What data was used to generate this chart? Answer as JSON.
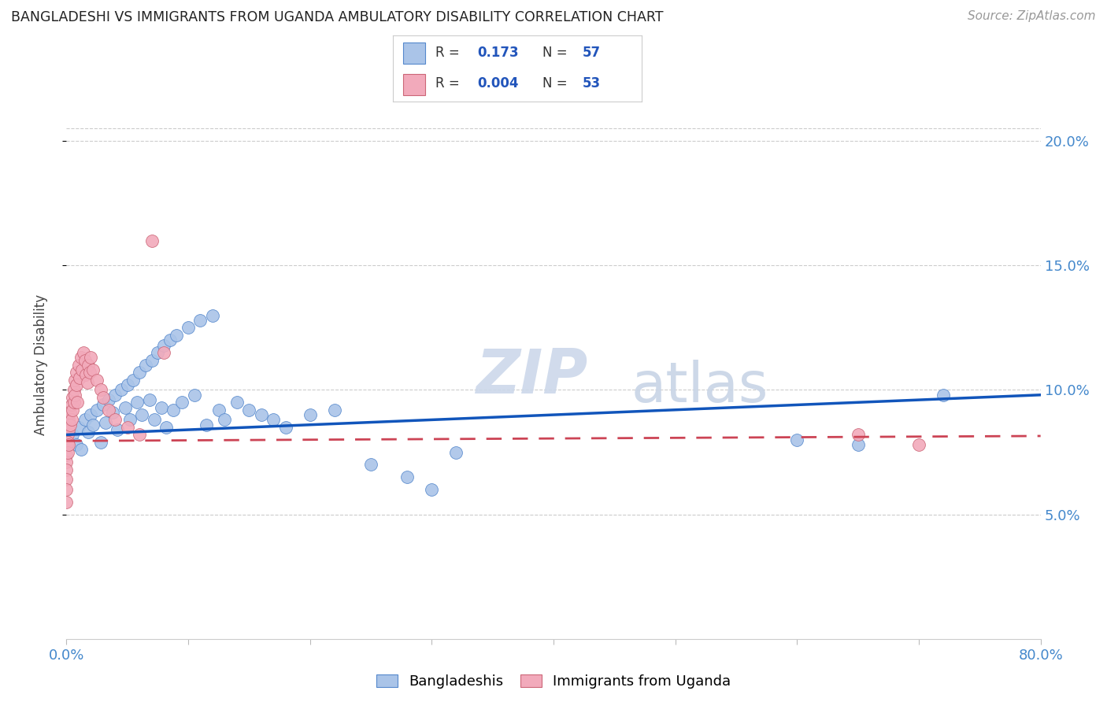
{
  "title": "BANGLADESHI VS IMMIGRANTS FROM UGANDA AMBULATORY DISABILITY CORRELATION CHART",
  "source": "Source: ZipAtlas.com",
  "ylabel": "Ambulatory Disability",
  "yticks": [
    0.05,
    0.1,
    0.15,
    0.2
  ],
  "ytick_labels": [
    "5.0%",
    "10.0%",
    "15.0%",
    "20.0%"
  ],
  "xlim": [
    0.0,
    0.8
  ],
  "ylim": [
    0.0,
    0.22
  ],
  "legend_blue_r": "0.173",
  "legend_blue_n": "57",
  "legend_pink_r": "0.004",
  "legend_pink_n": "53",
  "legend_label_blue": "Bangladeshis",
  "legend_label_pink": "Immigrants from Uganda",
  "blue_color": "#aac4e8",
  "pink_color": "#f2aabb",
  "blue_edge_color": "#5588cc",
  "pink_edge_color": "#cc6677",
  "blue_line_color": "#1155bb",
  "pink_line_color": "#cc4455",
  "watermark_zip": "ZIP",
  "watermark_atlas": "atlas",
  "blue_scatter_x": [
    0.005,
    0.008,
    0.01,
    0.012,
    0.015,
    0.018,
    0.02,
    0.022,
    0.025,
    0.028,
    0.03,
    0.032,
    0.035,
    0.038,
    0.04,
    0.042,
    0.045,
    0.048,
    0.05,
    0.052,
    0.055,
    0.058,
    0.06,
    0.062,
    0.065,
    0.068,
    0.07,
    0.072,
    0.075,
    0.078,
    0.08,
    0.082,
    0.085,
    0.088,
    0.09,
    0.095,
    0.1,
    0.105,
    0.11,
    0.115,
    0.12,
    0.125,
    0.13,
    0.14,
    0.15,
    0.16,
    0.17,
    0.18,
    0.2,
    0.22,
    0.25,
    0.28,
    0.3,
    0.32,
    0.6,
    0.65,
    0.72
  ],
  "blue_scatter_y": [
    0.082,
    0.078,
    0.085,
    0.076,
    0.088,
    0.083,
    0.09,
    0.086,
    0.092,
    0.079,
    0.094,
    0.087,
    0.096,
    0.091,
    0.098,
    0.084,
    0.1,
    0.093,
    0.102,
    0.088,
    0.104,
    0.095,
    0.107,
    0.09,
    0.11,
    0.096,
    0.112,
    0.088,
    0.115,
    0.093,
    0.118,
    0.085,
    0.12,
    0.092,
    0.122,
    0.095,
    0.125,
    0.098,
    0.128,
    0.086,
    0.13,
    0.092,
    0.088,
    0.095,
    0.092,
    0.09,
    0.088,
    0.085,
    0.09,
    0.092,
    0.07,
    0.065,
    0.06,
    0.075,
    0.08,
    0.078,
    0.098
  ],
  "pink_scatter_x": [
    0.0,
    0.0,
    0.0,
    0.0,
    0.0,
    0.0,
    0.0,
    0.0,
    0.0,
    0.0,
    0.001,
    0.001,
    0.001,
    0.001,
    0.002,
    0.002,
    0.002,
    0.003,
    0.003,
    0.004,
    0.004,
    0.005,
    0.005,
    0.006,
    0.006,
    0.007,
    0.007,
    0.008,
    0.008,
    0.009,
    0.01,
    0.011,
    0.012,
    0.013,
    0.014,
    0.015,
    0.016,
    0.017,
    0.018,
    0.019,
    0.02,
    0.022,
    0.025,
    0.028,
    0.03,
    0.035,
    0.04,
    0.05,
    0.06,
    0.07,
    0.08,
    0.65,
    0.7
  ],
  "pink_scatter_y": [
    0.083,
    0.081,
    0.079,
    0.077,
    0.074,
    0.071,
    0.068,
    0.064,
    0.06,
    0.055,
    0.085,
    0.082,
    0.079,
    0.075,
    0.088,
    0.084,
    0.078,
    0.091,
    0.086,
    0.094,
    0.088,
    0.097,
    0.092,
    0.1,
    0.095,
    0.104,
    0.098,
    0.107,
    0.102,
    0.095,
    0.11,
    0.105,
    0.113,
    0.108,
    0.115,
    0.112,
    0.106,
    0.103,
    0.11,
    0.107,
    0.113,
    0.108,
    0.104,
    0.1,
    0.097,
    0.092,
    0.088,
    0.085,
    0.082,
    0.16,
    0.115,
    0.082,
    0.078
  ],
  "blue_line_y_start": 0.082,
  "blue_line_y_end": 0.098,
  "pink_line_y_start": 0.0795,
  "pink_line_y_end": 0.0815
}
